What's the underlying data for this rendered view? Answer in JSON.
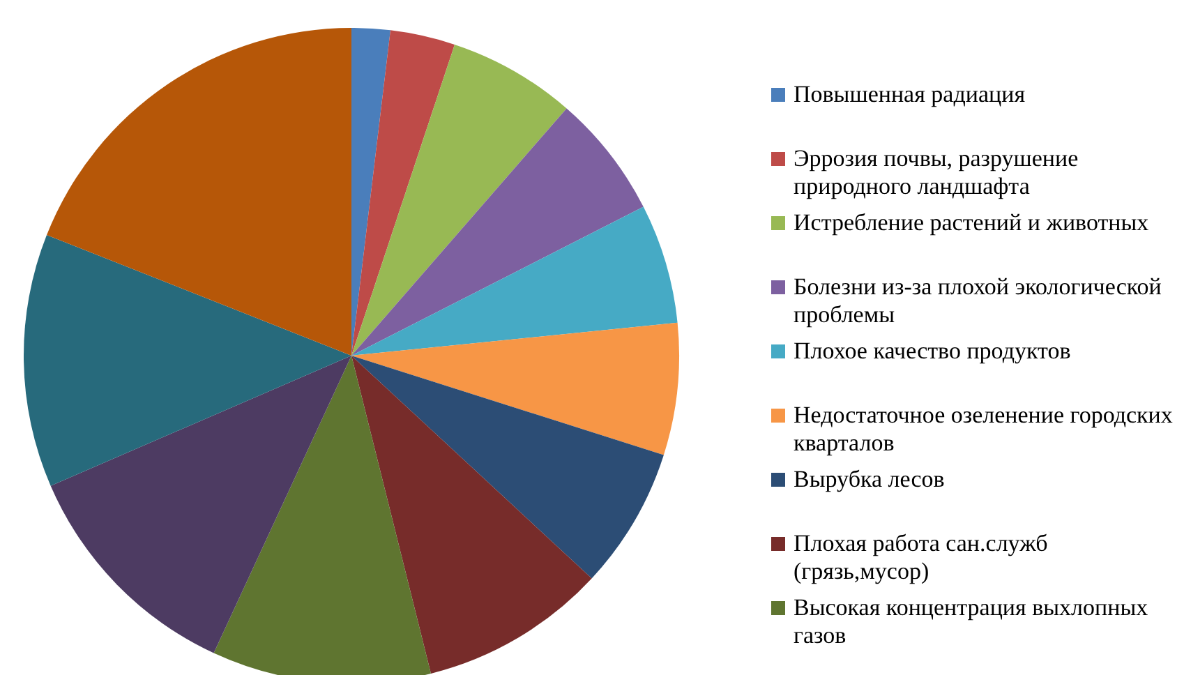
{
  "chart_data": {
    "type": "pie",
    "legend": "right",
    "categories": [
      "Повышенная радиация",
      "Эррозия почвы, разрушение природного ландшафта",
      "Истребление растений и животных",
      "Болезни из-за плохой экологической проблемы",
      "Плохое качество продуктов",
      "Недостаточное озеленение городских кварталов",
      "Вырубка лесов",
      "Плохая работа сан.служб (грязь,мусор)",
      "Высокая концентрация выхлопных газов",
      null,
      null,
      null
    ],
    "values": [
      1.9,
      3.2,
      6.3,
      6.1,
      5.9,
      6.5,
      7.0,
      9.2,
      10.8,
      11.6,
      12.5,
      19.0
    ],
    "colors": [
      "#4a7ebb",
      "#be4b48",
      "#98b954",
      "#7d60a0",
      "#46aac5",
      "#f79646",
      "#2c4d75",
      "#772c2a",
      "#5f7530",
      "#4d3b62",
      "#276a7c",
      "#b65708"
    ]
  }
}
